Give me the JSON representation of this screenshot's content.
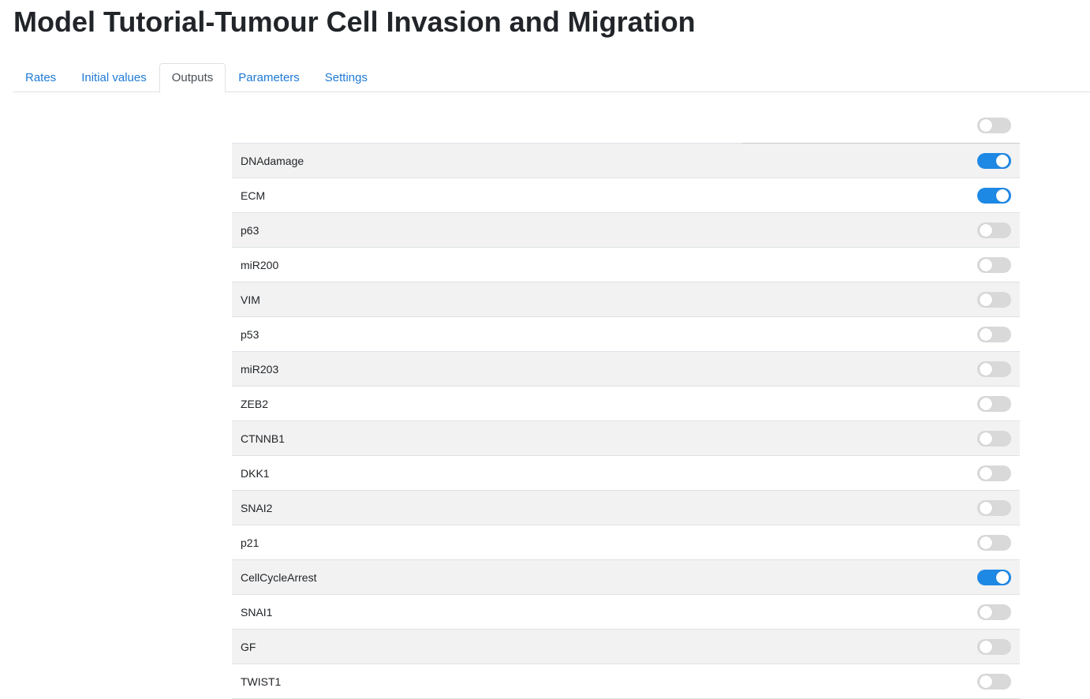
{
  "page": {
    "title": "Model Tutorial-Tumour Cell Invasion and Migration"
  },
  "tabs": [
    {
      "label": "Rates",
      "active": false
    },
    {
      "label": "Initial values",
      "active": false
    },
    {
      "label": "Outputs",
      "active": true
    },
    {
      "label": "Parameters",
      "active": false
    },
    {
      "label": "Settings",
      "active": false
    }
  ],
  "outputs": {
    "select_all_on": false,
    "items": [
      {
        "label": "DNAdamage",
        "on": true
      },
      {
        "label": "ECM",
        "on": true
      },
      {
        "label": "p63",
        "on": false
      },
      {
        "label": "miR200",
        "on": false
      },
      {
        "label": "VIM",
        "on": false
      },
      {
        "label": "p53",
        "on": false
      },
      {
        "label": "miR203",
        "on": false
      },
      {
        "label": "ZEB2",
        "on": false
      },
      {
        "label": "CTNNB1",
        "on": false
      },
      {
        "label": "DKK1",
        "on": false
      },
      {
        "label": "SNAI2",
        "on": false
      },
      {
        "label": "p21",
        "on": false
      },
      {
        "label": "CellCycleArrest",
        "on": true
      },
      {
        "label": "SNAI1",
        "on": false
      },
      {
        "label": "GF",
        "on": false
      },
      {
        "label": "TWIST1",
        "on": false
      }
    ]
  },
  "colors": {
    "accent": "#1e88e5",
    "link": "#1e7ad6",
    "switch_off": "#d9d9d9",
    "stripe": "#f2f2f2"
  }
}
